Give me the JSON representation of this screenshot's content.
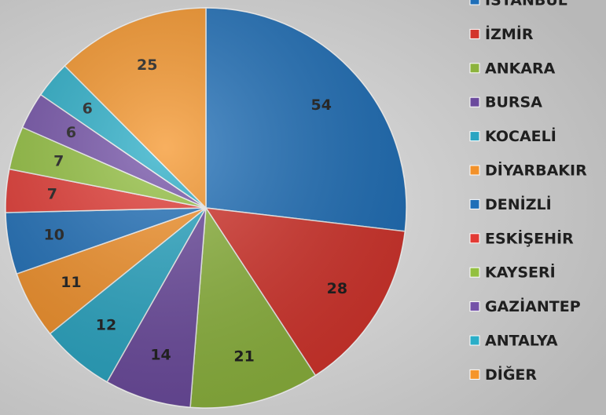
{
  "chart_data": {
    "type": "pie",
    "categories": [
      "İSTANBUL",
      "İZMİR",
      "ANKARA",
      "BURSA",
      "KOCAELİ",
      "DİYARBAKIR",
      "DENİZLİ",
      "ESKİŞEHİR",
      "KAYSERİ",
      "GAZİANTEP",
      "ANTALYA",
      "DİĞER"
    ],
    "values": [
      54,
      28,
      21,
      14,
      12,
      11,
      10,
      7,
      7,
      6,
      6,
      25
    ],
    "colors": [
      "#1f6fb8",
      "#d3342c",
      "#8cb33d",
      "#6b4a9d",
      "#29a5c2",
      "#f2912a",
      "#1f6fb8",
      "#e23a34",
      "#93c040",
      "#7452a8",
      "#2aaec8",
      "#f5952a"
    ],
    "legend": "right"
  }
}
